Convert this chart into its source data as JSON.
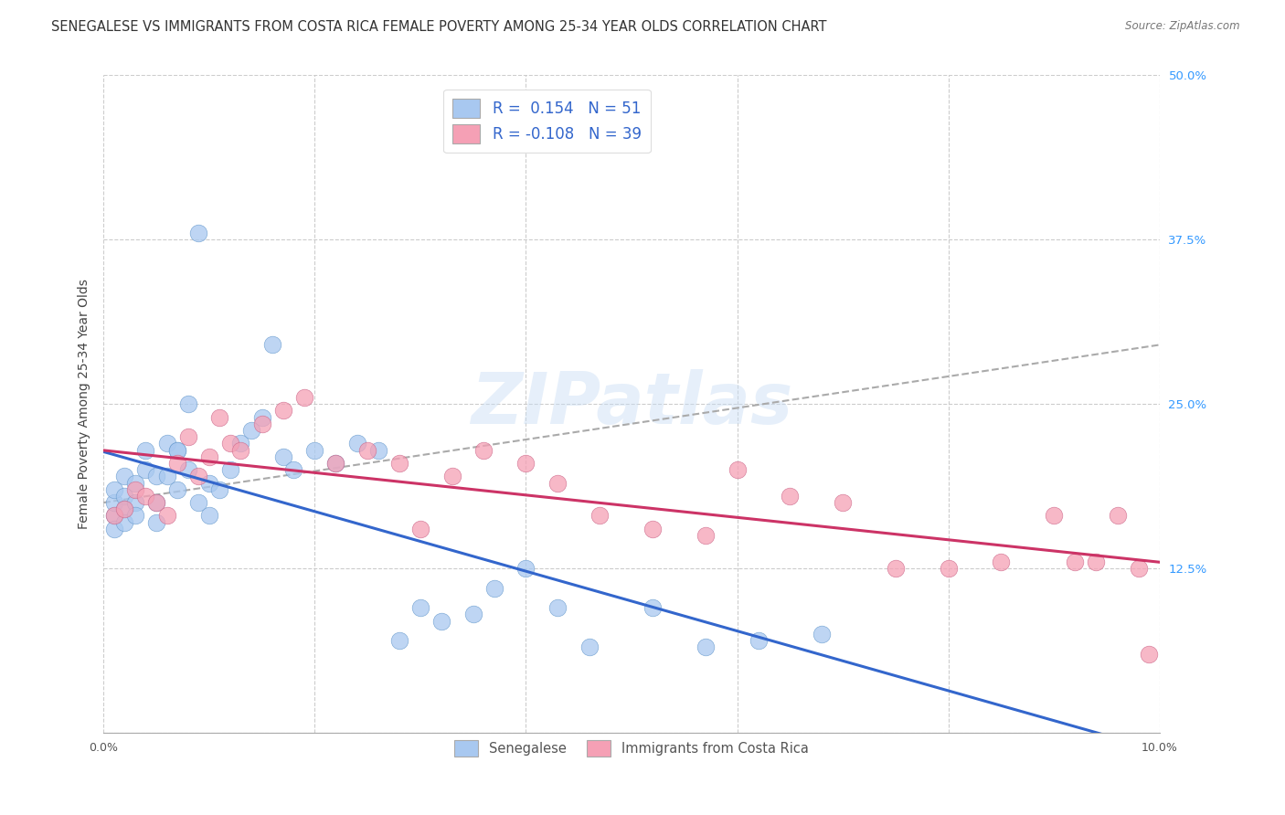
{
  "title": "SENEGALESE VS IMMIGRANTS FROM COSTA RICA FEMALE POVERTY AMONG 25-34 YEAR OLDS CORRELATION CHART",
  "source": "Source: ZipAtlas.com",
  "ylabel": "Female Poverty Among 25-34 Year Olds",
  "xlim": [
    0.0,
    0.1
  ],
  "ylim": [
    0.0,
    0.5
  ],
  "yticks": [
    0.0,
    0.125,
    0.25,
    0.375,
    0.5
  ],
  "ytick_labels": [
    "",
    "12.5%",
    "25.0%",
    "37.5%",
    "50.0%"
  ],
  "xticks": [
    0.0,
    0.02,
    0.04,
    0.06,
    0.08,
    0.1
  ],
  "xtick_labels": [
    "0.0%",
    "",
    "",
    "",
    "",
    "10.0%"
  ],
  "series": [
    {
      "name": "Senegalese",
      "R": 0.154,
      "N": 51,
      "color": "#a8c8f0",
      "edge_color": "#6699cc",
      "line_color": "#3366cc",
      "x": [
        0.001,
        0.001,
        0.001,
        0.001,
        0.002,
        0.002,
        0.002,
        0.002,
        0.003,
        0.003,
        0.003,
        0.004,
        0.004,
        0.005,
        0.005,
        0.005,
        0.006,
        0.006,
        0.007,
        0.007,
        0.007,
        0.008,
        0.008,
        0.009,
        0.009,
        0.01,
        0.01,
        0.011,
        0.012,
        0.013,
        0.014,
        0.015,
        0.016,
        0.017,
        0.018,
        0.02,
        0.022,
        0.024,
        0.026,
        0.028,
        0.03,
        0.032,
        0.035,
        0.037,
        0.04,
        0.043,
        0.046,
        0.052,
        0.057,
        0.062,
        0.068
      ],
      "y": [
        0.165,
        0.175,
        0.185,
        0.155,
        0.18,
        0.195,
        0.17,
        0.16,
        0.175,
        0.19,
        0.165,
        0.2,
        0.215,
        0.195,
        0.175,
        0.16,
        0.22,
        0.195,
        0.215,
        0.185,
        0.215,
        0.2,
        0.25,
        0.38,
        0.175,
        0.19,
        0.165,
        0.185,
        0.2,
        0.22,
        0.23,
        0.24,
        0.295,
        0.21,
        0.2,
        0.215,
        0.205,
        0.22,
        0.215,
        0.07,
        0.095,
        0.085,
        0.09,
        0.11,
        0.125,
        0.095,
        0.065,
        0.095,
        0.065,
        0.07,
        0.075
      ]
    },
    {
      "name": "Immigrants from Costa Rica",
      "R": -0.108,
      "N": 39,
      "color": "#f5a0b5",
      "edge_color": "#cc6688",
      "line_color": "#cc3366",
      "x": [
        0.001,
        0.002,
        0.003,
        0.004,
        0.005,
        0.006,
        0.007,
        0.008,
        0.009,
        0.01,
        0.011,
        0.012,
        0.013,
        0.015,
        0.017,
        0.019,
        0.022,
        0.025,
        0.028,
        0.03,
        0.033,
        0.036,
        0.04,
        0.043,
        0.047,
        0.052,
        0.057,
        0.06,
        0.065,
        0.07,
        0.075,
        0.08,
        0.085,
        0.09,
        0.092,
        0.094,
        0.096,
        0.098,
        0.099
      ],
      "y": [
        0.165,
        0.17,
        0.185,
        0.18,
        0.175,
        0.165,
        0.205,
        0.225,
        0.195,
        0.21,
        0.24,
        0.22,
        0.215,
        0.235,
        0.245,
        0.255,
        0.205,
        0.215,
        0.205,
        0.155,
        0.195,
        0.215,
        0.205,
        0.19,
        0.165,
        0.155,
        0.15,
        0.2,
        0.18,
        0.175,
        0.125,
        0.125,
        0.13,
        0.165,
        0.13,
        0.13,
        0.165,
        0.125,
        0.06
      ]
    }
  ],
  "watermark": "ZIPatlas",
  "background_color": "#ffffff",
  "grid_color": "#cccccc"
}
